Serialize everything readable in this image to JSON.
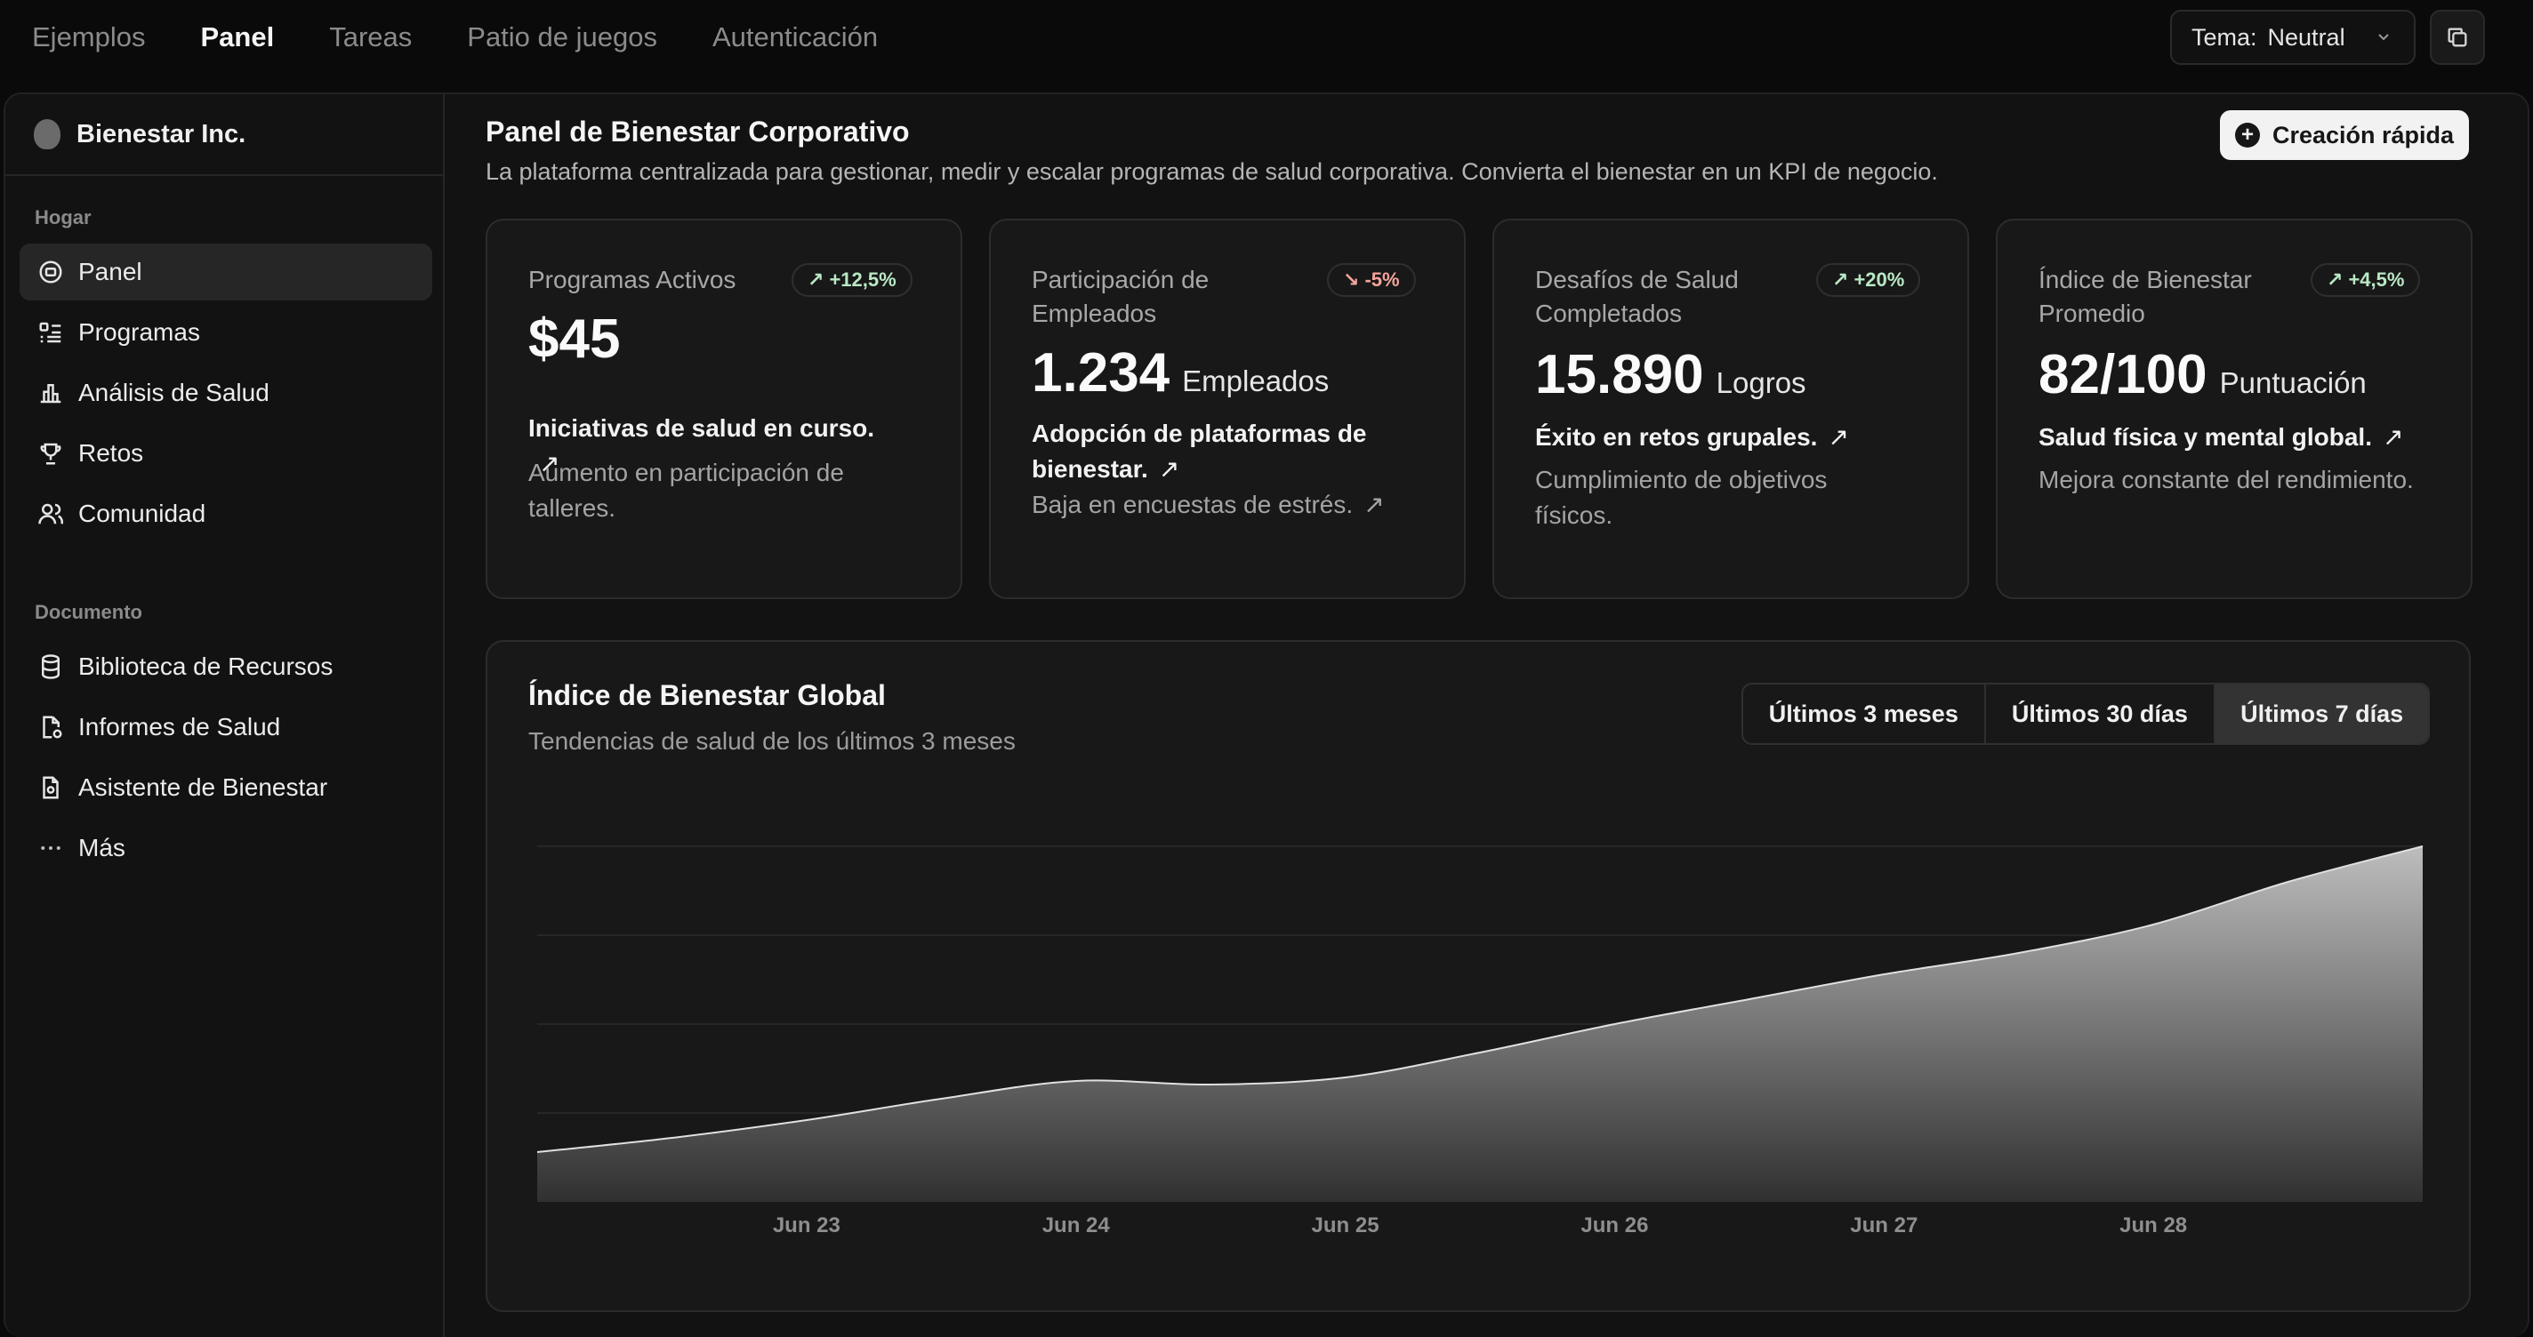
{
  "topnav": {
    "links": [
      {
        "label": "Ejemplos",
        "active": false
      },
      {
        "label": "Panel",
        "active": true
      },
      {
        "label": "Tareas",
        "active": false
      },
      {
        "label": "Patio de juegos",
        "active": false
      },
      {
        "label": "Autenticación",
        "active": false
      }
    ],
    "theme_label": "Tema:",
    "theme_value": "Neutral"
  },
  "sidebar": {
    "org_name": "Bienestar Inc.",
    "section_home": "Hogar",
    "home_items": [
      {
        "label": "Panel",
        "icon": "dashboard-icon",
        "active": true
      },
      {
        "label": "Programas",
        "icon": "list-icon"
      },
      {
        "label": "Análisis de Salud",
        "icon": "bar-chart-icon"
      },
      {
        "label": "Retos",
        "icon": "trophy-icon"
      },
      {
        "label": "Comunidad",
        "icon": "users-icon"
      }
    ],
    "section_docs": "Documento",
    "doc_items": [
      {
        "label": "Biblioteca de Recursos",
        "icon": "database-icon"
      },
      {
        "label": "Informes de Salud",
        "icon": "report-icon"
      },
      {
        "label": "Asistente de Bienestar",
        "icon": "file-icon"
      },
      {
        "label": "Más",
        "icon": "more-icon"
      }
    ]
  },
  "header": {
    "title": "Panel de Bienestar Corporativo",
    "subtitle": "La plataforma centralizada para gestionar, medir y escalar programas de salud corporativa. Convierta el bienestar en un KPI de negocio.",
    "quick_create": "Creación rápida"
  },
  "cards": [
    {
      "title": "Programas Activos",
      "badge": "+12,5%",
      "trend": "up",
      "value": "$45",
      "unit": "",
      "strong": "Iniciativas de salud en curso.",
      "muted": "Aumento en participación de talleres."
    },
    {
      "title": "Participación de Empleados",
      "badge": "-5%",
      "trend": "down",
      "value": "1.234",
      "unit": "Empleados",
      "strong": "Adopción de plataformas de bienestar.",
      "muted": "Baja en encuestas de estrés."
    },
    {
      "title": "Desafíos de Salud Completados",
      "badge": "+20%",
      "trend": "up",
      "value": "15.890",
      "unit": "Logros",
      "strong": "Éxito en retos grupales.",
      "muted": "Cumplimiento de objetivos físicos."
    },
    {
      "title": "Índice de Bienestar Promedio",
      "badge": "+4,5%",
      "trend": "up",
      "value": "82/100",
      "unit": "Puntuación",
      "strong": "Salud física y mental global.",
      "muted": "Mejora constante del rendimiento."
    }
  ],
  "chart_panel": {
    "title": "Índice de Bienestar Global",
    "subtitle": "Tendencias de salud de los últimos 3 meses",
    "ranges": [
      {
        "label": "Últimos 3 meses",
        "active": false
      },
      {
        "label": "Últimos 30 días",
        "active": false
      },
      {
        "label": "Últimos 7 días",
        "active": true
      }
    ]
  },
  "chart_data": {
    "type": "area",
    "x_tick_labels": [
      "Jun 23",
      "Jun 24",
      "Jun 25",
      "Jun 26",
      "Jun 27",
      "Jun 28"
    ],
    "x": [
      22.0,
      22.5,
      23.0,
      23.5,
      24.0,
      24.5,
      25.0,
      25.5,
      26.0,
      26.5,
      27.0,
      27.5,
      28.0,
      28.5,
      29.0
    ],
    "values": [
      14,
      18,
      23,
      29,
      34,
      33,
      35,
      42,
      50,
      57,
      64,
      70,
      78,
      90,
      100
    ],
    "ylim": [
      0,
      100
    ],
    "grid": true,
    "colors": {
      "fill_top": "#bdbdbd",
      "fill_bottom": "#303030",
      "line": "#e0e0e0"
    }
  }
}
